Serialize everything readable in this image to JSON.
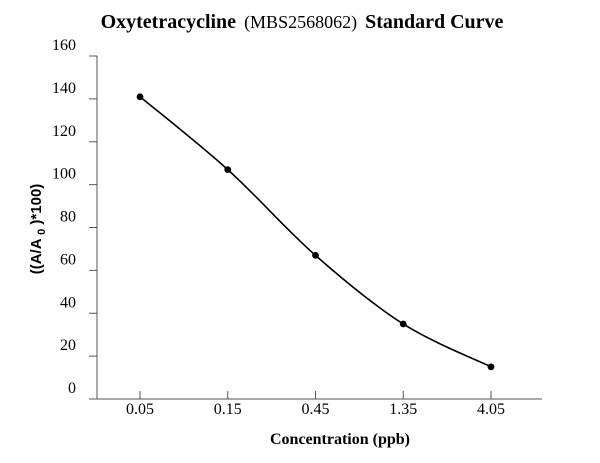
{
  "chart_data": {
    "type": "line",
    "title": {
      "prefix": "Oxytetracycline",
      "id": "(MBS2568062)",
      "suffix": "Standard Curve"
    },
    "xlabel": "Concentration (ppb)",
    "ylabel": {
      "before": "((A/A",
      "subscript": "0",
      "after": ")*100)"
    },
    "categories": [
      "0.05",
      "0.15",
      "0.45",
      "1.35",
      "4.05"
    ],
    "series": [
      {
        "name": "Standard Curve",
        "values": [
          141,
          107,
          67,
          35,
          15
        ]
      }
    ],
    "ylim": [
      0,
      160
    ],
    "yticks": [
      "0",
      "20",
      "40",
      "60",
      "80",
      "100",
      "120",
      "140",
      "160"
    ],
    "grid": false,
    "colors": {
      "line": "#000000",
      "marker": "#000000",
      "axis": "#555555"
    }
  }
}
